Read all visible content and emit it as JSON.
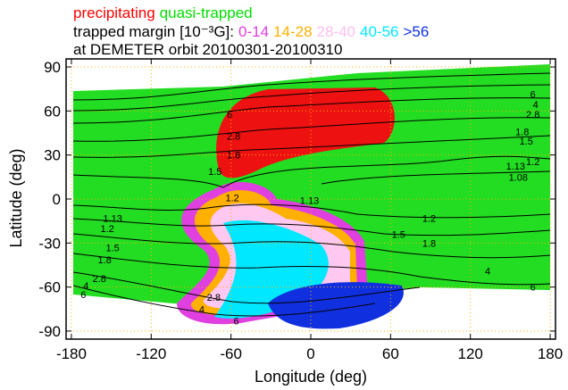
{
  "chart_data": {
    "type": "map",
    "populations": [
      {
        "name": "precipitating",
        "color": "#ff0000"
      },
      {
        "name": "quasi-trapped",
        "color": "#00dd00"
      }
    ],
    "legend": {
      "label": "trapped margin [10⁻³G]:",
      "items": [
        {
          "name": "0-14",
          "color": "#e040e0"
        },
        {
          "name": "14-28",
          "color": "#ffb000"
        },
        {
          "name": "28-40",
          "color": "#ffc0f0"
        },
        {
          "name": "40-56",
          "color": "#00e8ff"
        },
        {
          "name": ">56",
          "color": "#1030e0"
        }
      ]
    },
    "subtitle": "at DEMETER orbit 20100301-20100310",
    "x_label": "Longitude (deg)",
    "y_label": "Latitude (deg)",
    "xlim": [
      -184,
      184
    ],
    "xticks": [
      -180,
      -120,
      -60,
      0,
      60,
      120,
      180
    ],
    "ylim": [
      -95.5,
      95.5
    ],
    "yticks": [
      90,
      60,
      30,
      0,
      -30,
      -60,
      -90
    ],
    "grid": true,
    "contour_labels": [
      {
        "level": 6,
        "lon": 167,
        "lat": 71.5
      },
      {
        "level": 4,
        "lon": 169,
        "lat": 64.5
      },
      {
        "level": 2.8,
        "lon": 167,
        "lat": 57.8
      },
      {
        "level": 1.8,
        "lon": 159,
        "lat": 46
      },
      {
        "level": 1.5,
        "lon": 162,
        "lat": 39.5
      },
      {
        "level": 1.2,
        "lon": 167,
        "lat": 25.5
      },
      {
        "level": 1.13,
        "lon": 154,
        "lat": 22.5
      },
      {
        "level": 1.08,
        "lon": 156,
        "lat": 15
      },
      {
        "level": 6,
        "lon": -61,
        "lat": 57.8
      },
      {
        "level": 2.8,
        "lon": -58,
        "lat": 43
      },
      {
        "level": 1.8,
        "lon": -58,
        "lat": 30
      },
      {
        "level": 1.5,
        "lon": -72,
        "lat": 19
      },
      {
        "level": 1.2,
        "lon": -59,
        "lat": 1
      },
      {
        "level": 1.13,
        "lon": -1,
        "lat": -1
      },
      {
        "level": 1.13,
        "lon": -149,
        "lat": -13
      },
      {
        "level": 1.2,
        "lon": -153,
        "lat": -20
      },
      {
        "level": 1.5,
        "lon": -149,
        "lat": -33
      },
      {
        "level": 1.8,
        "lon": -155,
        "lat": -41.5
      },
      {
        "level": 2.8,
        "lon": -159,
        "lat": -54
      },
      {
        "level": 4,
        "lon": -169,
        "lat": -59
      },
      {
        "level": 6,
        "lon": -171,
        "lat": -65
      },
      {
        "level": 2.8,
        "lon": -73,
        "lat": -67
      },
      {
        "level": 4,
        "lon": -82,
        "lat": -75
      },
      {
        "level": 6,
        "lon": -56,
        "lat": -83
      },
      {
        "level": 1.2,
        "lon": 89,
        "lat": -13
      },
      {
        "level": 1.5,
        "lon": 66,
        "lat": -24
      },
      {
        "level": 1.8,
        "lon": 89,
        "lat": -30
      },
      {
        "level": 4,
        "lon": 133,
        "lat": -49
      },
      {
        "level": 6,
        "lon": 167,
        "lat": -60
      }
    ]
  }
}
